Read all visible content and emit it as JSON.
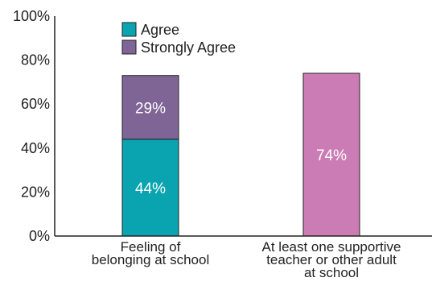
{
  "chart_data": {
    "type": "bar",
    "stacked": true,
    "categories": [
      [
        "Feeling of",
        "belonging at school"
      ],
      [
        "At least one supportive",
        "teacher or other adult",
        "at school"
      ]
    ],
    "series": [
      {
        "name": "Agree",
        "color": "#0aa3b0",
        "values": [
          44,
          null
        ]
      },
      {
        "name": "Strongly Agree",
        "color": "#7f6496",
        "values": [
          29,
          null
        ]
      },
      {
        "name": "",
        "color": "#cc7cb4",
        "values": [
          null,
          74
        ]
      }
    ],
    "data_labels": [
      [
        "44%",
        null
      ],
      [
        "29%",
        null
      ],
      [
        null,
        "74%"
      ]
    ],
    "ylim": [
      0,
      100
    ],
    "yticks": [
      "0%",
      "20%",
      "40%",
      "60%",
      "80%",
      "100%"
    ],
    "ytick_values": [
      0,
      20,
      40,
      60,
      80,
      100
    ],
    "legend": {
      "placement": "top-left",
      "entries": [
        "Agree",
        "Strongly Agree"
      ],
      "colors": [
        "#0aa3b0",
        "#7f6496"
      ]
    },
    "grid": false,
    "title": "",
    "xlabel": "",
    "ylabel": ""
  }
}
